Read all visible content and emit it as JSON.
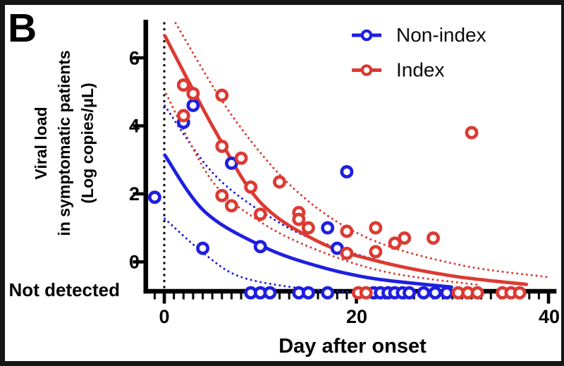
{
  "panel_label": "B",
  "colors": {
    "non_index": "#1f1fe0",
    "index": "#dc3a32",
    "axis": "#000000",
    "onset_line": "#111111",
    "background": "#ffffff",
    "text": "#000000"
  },
  "legend": {
    "items": [
      {
        "id": "non_index",
        "label": "Non-index"
      },
      {
        "id": "index",
        "label": "Index"
      }
    ]
  },
  "axes": {
    "x": {
      "title": "Day after onset",
      "tick_labels": [
        "0",
        "20",
        "40"
      ],
      "tick_values": [
        0,
        20,
        40
      ],
      "minor_tick_step": 1,
      "range": [
        -2.17,
        40.88
      ]
    },
    "y": {
      "title_lines": [
        "Viral load",
        "in symptomatic patients",
        "(Log copies/μL)"
      ],
      "tick_labels": [
        "6",
        "4",
        "2",
        "0"
      ],
      "tick_values": [
        6,
        4,
        2,
        0
      ],
      "range": [
        -0.93,
        7.12
      ],
      "not_detected_label": "Not detected",
      "not_detected_value": -0.91
    }
  },
  "chart_data": {
    "type": "scatter",
    "title": "",
    "xlabel": "Day after onset",
    "ylabel": "Viral load in symptomatic patients (Log copies/μL)",
    "xlim": [
      -2.17,
      40.88
    ],
    "ylim": [
      -0.93,
      7.12
    ],
    "grid": false,
    "legend_position": "top-right",
    "onset_line_x": 0,
    "marker": "open-circle",
    "series": [
      {
        "id": "non_index",
        "name": "Non-index",
        "color_key": "non_index",
        "detected": [
          [
            -1,
            1.9
          ],
          [
            2,
            4.1
          ],
          [
            3,
            4.6
          ],
          [
            4,
            0.4
          ],
          [
            7,
            2.9
          ],
          [
            10,
            0.45
          ],
          [
            17,
            1.0
          ],
          [
            18,
            0.4
          ],
          [
            19,
            2.65
          ]
        ],
        "not_detected_days": [
          9,
          10,
          11,
          14,
          15,
          17,
          21.8,
          22.5,
          23.3,
          24,
          24.8,
          25.5,
          27,
          28.2,
          29.4
        ],
        "fit_curve": [
          [
            0.05,
            3.14
          ],
          [
            4.2,
            1.48
          ],
          [
            10.2,
            0.46
          ],
          [
            15.9,
            -0.12
          ],
          [
            21.8,
            -0.49
          ],
          [
            29.9,
            -0.74
          ]
        ],
        "ci_upper": [
          [
            0.05,
            4.59
          ],
          [
            5.4,
            2.51
          ],
          [
            12.3,
            1.1
          ],
          [
            18.1,
            0.4
          ],
          [
            24.0,
            -0.08
          ],
          [
            28.4,
            -0.35
          ]
        ],
        "ci_lower": [
          [
            0.05,
            1.27
          ],
          [
            4.2,
            0.23
          ],
          [
            7.85,
            -0.43
          ],
          [
            13.7,
            -0.76
          ],
          [
            19.2,
            -0.89
          ]
        ]
      },
      {
        "id": "index",
        "name": "Index",
        "color_key": "index",
        "detected": [
          [
            2,
            5.2
          ],
          [
            2,
            4.3
          ],
          [
            3,
            4.95
          ],
          [
            6,
            4.9
          ],
          [
            6,
            3.4
          ],
          [
            6,
            1.95
          ],
          [
            7,
            1.65
          ],
          [
            8,
            3.05
          ],
          [
            9,
            2.2
          ],
          [
            10,
            1.4
          ],
          [
            12,
            2.35
          ],
          [
            14,
            1.45
          ],
          [
            14,
            1.25
          ],
          [
            15,
            1.0
          ],
          [
            19,
            0.9
          ],
          [
            19,
            0.25
          ],
          [
            22,
            1.0
          ],
          [
            22,
            0.3
          ],
          [
            24,
            0.55
          ],
          [
            25,
            0.7
          ],
          [
            28,
            0.7
          ],
          [
            32,
            3.8
          ]
        ],
        "not_detected_days": [
          20.2,
          21,
          30.6,
          31.6,
          32.6,
          35.2,
          36.1,
          37
        ],
        "fit_curve": [
          [
            0.05,
            6.65
          ],
          [
            5.4,
            3.8
          ],
          [
            10.0,
            1.75
          ],
          [
            16.0,
            0.6
          ],
          [
            21.8,
            0.05
          ],
          [
            29.9,
            -0.41
          ],
          [
            37.7,
            -0.66
          ]
        ],
        "ci_upper": [
          [
            1.17,
            7.02
          ],
          [
            7.1,
            4.28
          ],
          [
            13.7,
            2.1
          ],
          [
            21.1,
            0.71
          ],
          [
            30.6,
            -0.08
          ],
          [
            40.0,
            -0.45
          ]
        ],
        "ci_lower": [
          [
            0.2,
            4.94
          ],
          [
            4.9,
            2.41
          ],
          [
            10.05,
            1.17
          ],
          [
            16.0,
            0.34
          ],
          [
            23.3,
            -0.31
          ],
          [
            32.8,
            -0.68
          ]
        ]
      }
    ]
  }
}
